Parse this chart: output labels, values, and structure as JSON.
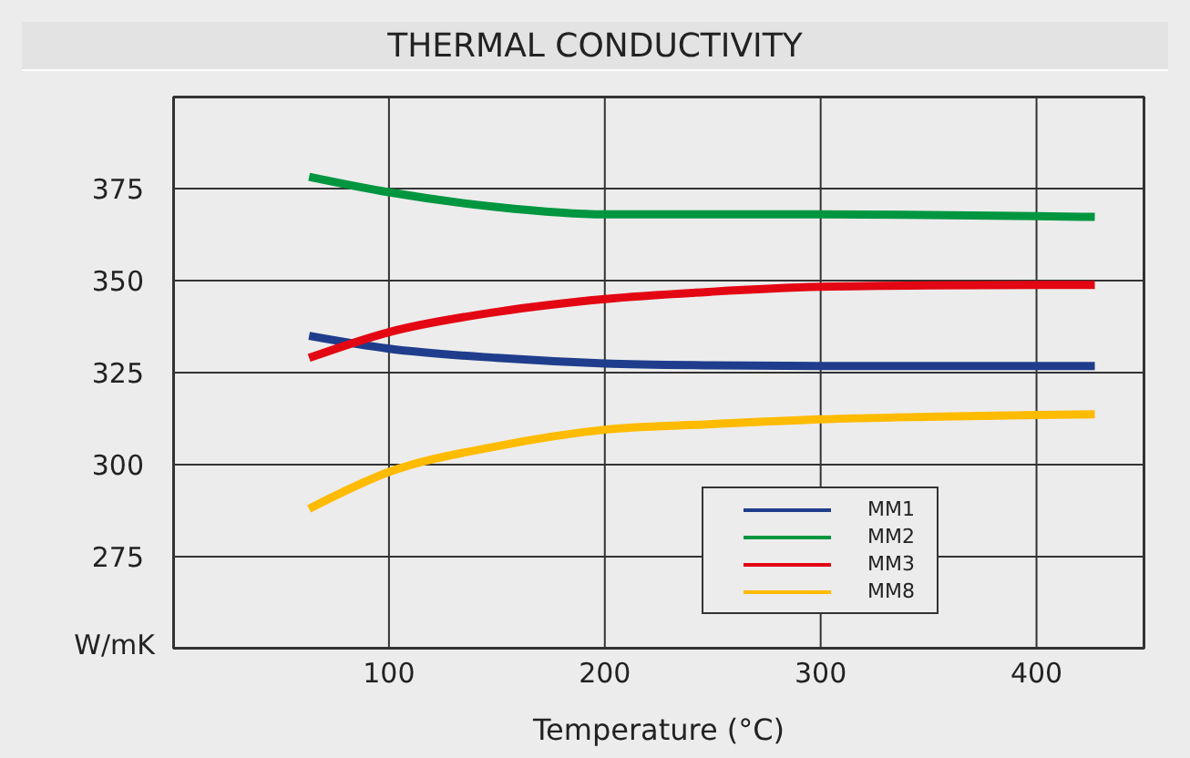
{
  "chart_data": {
    "type": "line",
    "title": "THERMAL CONDUCTIVITY",
    "xlabel": "Temperature (°C)",
    "ylabel": "W/mK",
    "xlim": [
      0,
      450
    ],
    "xticks": [
      100,
      200,
      300,
      400
    ],
    "ylim": [
      250,
      400
    ],
    "yticks": [
      {
        "value": 250,
        "label": null
      },
      275,
      300,
      325,
      350,
      375
    ],
    "grid": true,
    "legend": "bottom right",
    "marker": "none",
    "line_style": "solid",
    "x": [
      63,
      100,
      150,
      200,
      250,
      300,
      350,
      400,
      427
    ],
    "series": [
      {
        "name": "MM1",
        "color": "#1f3d8c",
        "values": [
          335,
          331.5,
          329,
          327.5,
          327,
          326.8,
          326.8,
          326.8,
          326.8
        ]
      },
      {
        "name": "MM2",
        "color": "#009640",
        "values": [
          378.2,
          374,
          370,
          368,
          368,
          368,
          367.8,
          367.5,
          367.3
        ]
      },
      {
        "name": "MM3",
        "color": "#e30613",
        "values": [
          329,
          336,
          341.5,
          345,
          347,
          348.3,
          348.7,
          348.8,
          348.8
        ]
      },
      {
        "name": "MM8",
        "color": "#ffbb00",
        "values": [
          288,
          298,
          305,
          309.5,
          311,
          312.3,
          313,
          313.5,
          313.7
        ]
      }
    ]
  }
}
